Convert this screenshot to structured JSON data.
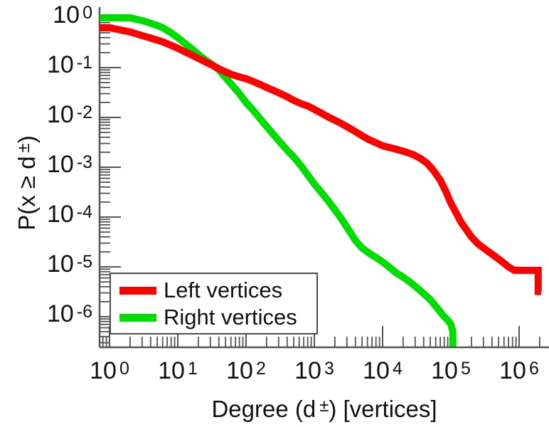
{
  "figure": {
    "background": "#ffffff",
    "text_color": "#111111",
    "axis_color": "#555555"
  },
  "x_axis": {
    "label_pre": "Degree (d",
    "label_sup": "±",
    "label_post": ") [vertices]",
    "tick_base": "10",
    "tick_exponents": [
      0,
      1,
      2,
      3,
      4,
      5,
      6
    ]
  },
  "y_axis": {
    "label_pre": "P(x ≥ d",
    "label_sup": "±",
    "label_post": ")",
    "tick_base": "10",
    "tick_exponents": [
      0,
      -1,
      -2,
      -3,
      -4,
      -5,
      -6
    ]
  },
  "legend": {
    "items": [
      {
        "label": "Left vertices",
        "color": "#ff0000"
      },
      {
        "label": "Right vertices",
        "color": "#00dd00"
      }
    ]
  },
  "chart_data": {
    "type": "line",
    "subtype": "ccdf-staircase",
    "title": "",
    "xlabel": "Degree (d±) [vertices]",
    "ylabel": "P(x ≥ d±)",
    "xscale": "log",
    "yscale": "log",
    "xlim": [
      0.72,
      2800000
    ],
    "ylim": [
      2.5e-07,
      1.6
    ],
    "grid": false,
    "legend_position": "bottom-left",
    "series": [
      {
        "name": "Left vertices",
        "color": "#ff0000",
        "points": [
          [
            0.72,
            0.63
          ],
          [
            1,
            0.63
          ],
          [
            2,
            0.52
          ],
          [
            3,
            0.44
          ],
          [
            4,
            0.39
          ],
          [
            6,
            0.33
          ],
          [
            8,
            0.28
          ],
          [
            10,
            0.245
          ],
          [
            13,
            0.205
          ],
          [
            18,
            0.165
          ],
          [
            25,
            0.132
          ],
          [
            32,
            0.112
          ],
          [
            40,
            0.095
          ],
          [
            50,
            0.082
          ],
          [
            63,
            0.072
          ],
          [
            80,
            0.065
          ],
          [
            100,
            0.06
          ],
          [
            130,
            0.052
          ],
          [
            160,
            0.046
          ],
          [
            200,
            0.04
          ],
          [
            250,
            0.035
          ],
          [
            320,
            0.03
          ],
          [
            400,
            0.026
          ],
          [
            500,
            0.022
          ],
          [
            630,
            0.019
          ],
          [
            800,
            0.017
          ],
          [
            1000,
            0.0145
          ],
          [
            1300,
            0.012
          ],
          [
            1600,
            0.0102
          ],
          [
            2000,
            0.0088
          ],
          [
            2500,
            0.0075
          ],
          [
            3200,
            0.0062
          ],
          [
            4000,
            0.0052
          ],
          [
            5000,
            0.0043
          ],
          [
            6300,
            0.0036
          ],
          [
            8000,
            0.0031
          ],
          [
            10000,
            0.0027
          ],
          [
            14000,
            0.0024
          ],
          [
            20000,
            0.0021
          ],
          [
            28000,
            0.0018
          ],
          [
            36000,
            0.0015
          ],
          [
            45000,
            0.0012
          ],
          [
            56000,
            0.00085
          ],
          [
            70000,
            0.00055
          ],
          [
            85000,
            0.00032
          ],
          [
            100000,
            0.00019
          ],
          [
            120000,
            0.00012
          ],
          [
            140000,
            8e-05
          ],
          [
            170000,
            5.5e-05
          ],
          [
            200000,
            4e-05
          ],
          [
            250000,
            2.9e-05
          ],
          [
            300000,
            2.4e-05
          ],
          [
            360000,
            2e-05
          ],
          [
            450000,
            1.6e-05
          ],
          [
            550000,
            1.3e-05
          ],
          [
            700000,
            1e-05
          ],
          [
            850000,
            8.5e-06
          ],
          [
            1900000,
            8.5e-06
          ],
          [
            1900000,
            3.2e-06
          ],
          [
            2100000,
            3.2e-06
          ]
        ]
      },
      {
        "name": "Right vertices",
        "color": "#00dd00",
        "points": [
          [
            0.72,
            1.0
          ],
          [
            1,
            1.0
          ],
          [
            2,
            1.0
          ],
          [
            3,
            0.88
          ],
          [
            4,
            0.78
          ],
          [
            5,
            0.7
          ],
          [
            6,
            0.63
          ],
          [
            8,
            0.5
          ],
          [
            10,
            0.4
          ],
          [
            13,
            0.3
          ],
          [
            16,
            0.24
          ],
          [
            20,
            0.185
          ],
          [
            25,
            0.145
          ],
          [
            32,
            0.115
          ],
          [
            40,
            0.09
          ],
          [
            50,
            0.063
          ],
          [
            63,
            0.044
          ],
          [
            80,
            0.03
          ],
          [
            100,
            0.02
          ],
          [
            130,
            0.0135
          ],
          [
            160,
            0.0095
          ],
          [
            200,
            0.0066
          ],
          [
            250,
            0.0046
          ],
          [
            320,
            0.0031
          ],
          [
            400,
            0.0022
          ],
          [
            500,
            0.0016
          ],
          [
            630,
            0.0011
          ],
          [
            800,
            0.0007
          ],
          [
            1000,
            0.00046
          ],
          [
            1300,
            0.0003
          ],
          [
            1600,
            0.00021
          ],
          [
            2000,
            0.00014
          ],
          [
            2500,
            9.2e-05
          ],
          [
            3200,
            5.5e-05
          ],
          [
            4000,
            3.4e-05
          ],
          [
            5000,
            2.4e-05
          ],
          [
            6300,
            1.9e-05
          ],
          [
            8000,
            1.55e-05
          ],
          [
            10000,
            1.26e-05
          ],
          [
            13000,
            9.5e-06
          ],
          [
            16000,
            7.5e-06
          ],
          [
            20000,
            6.2e-06
          ],
          [
            25000,
            5e-06
          ],
          [
            32000,
            3.8e-06
          ],
          [
            40000,
            2.9e-06
          ],
          [
            50000,
            2.2e-06
          ],
          [
            63000,
            1.5e-06
          ],
          [
            80000,
            1e-06
          ],
          [
            90000,
            8.5e-07
          ],
          [
            100000,
            7e-07
          ],
          [
            107000,
            5e-07
          ],
          [
            107000,
            2.5e-07
          ]
        ]
      }
    ]
  }
}
